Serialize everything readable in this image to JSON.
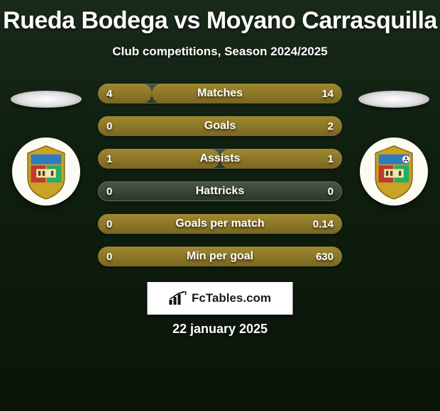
{
  "title": "Rueda Bodega vs Moyano Carrasquilla",
  "subtitle": "Club competitions, Season 2024/2025",
  "date_text": "22 january 2025",
  "brand_text": "FcTables.com",
  "title_fontsize": 34,
  "subtitle_fontsize": 17,
  "fill_color": "#a08830",
  "track_color": "#3b4538",
  "background_gradient": [
    "#1a2a1a",
    "#0a150a"
  ],
  "crest_colors": {
    "ring": "#fdfcf4",
    "crown": "#d4a017",
    "band_top": "#2e7bbf",
    "band_left": "#c0392b",
    "band_right": "#27ae60",
    "gold": "#c9a227"
  },
  "stats": [
    {
      "label": "Matches",
      "left_val": "4",
      "right_val": "14",
      "left_pct": 22,
      "right_pct": 78
    },
    {
      "label": "Goals",
      "left_val": "0",
      "right_val": "2",
      "left_pct": 0,
      "right_pct": 100
    },
    {
      "label": "Assists",
      "left_val": "1",
      "right_val": "1",
      "left_pct": 50,
      "right_pct": 50
    },
    {
      "label": "Hattricks",
      "left_val": "0",
      "right_val": "0",
      "left_pct": 0,
      "right_pct": 0
    },
    {
      "label": "Goals per match",
      "left_val": "0",
      "right_val": "0.14",
      "left_pct": 0,
      "right_pct": 100
    },
    {
      "label": "Min per goal",
      "left_val": "0",
      "right_val": "630",
      "left_pct": 0,
      "right_pct": 100
    }
  ]
}
